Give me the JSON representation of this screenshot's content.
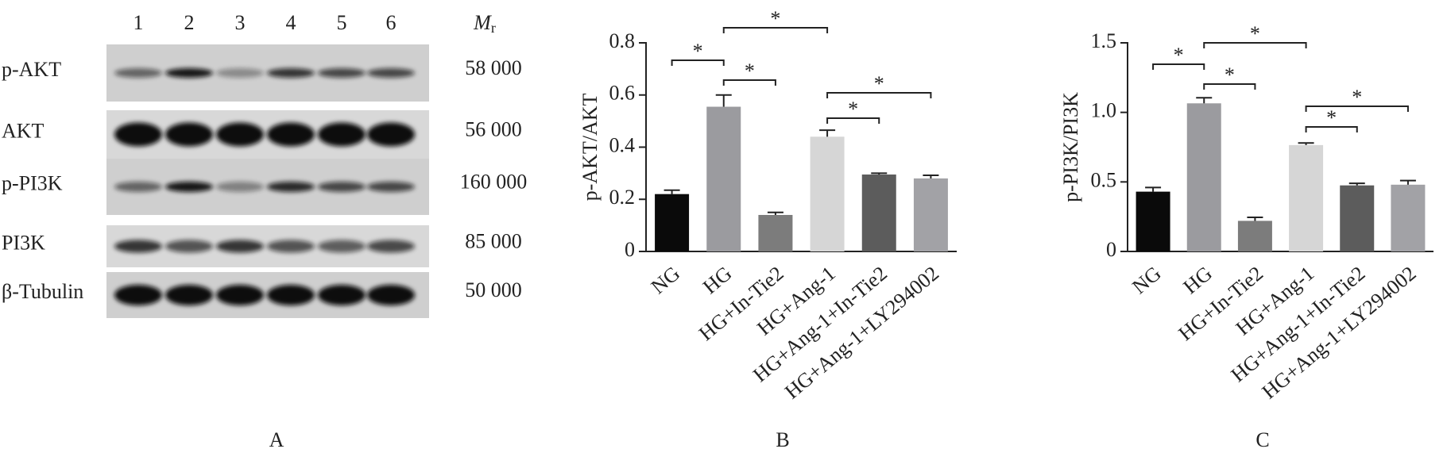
{
  "blot": {
    "lanes": [
      "1",
      "2",
      "3",
      "4",
      "5",
      "6"
    ],
    "mr_symbol": "M",
    "mr_subscript": "r",
    "rows": [
      {
        "label": "p-AKT",
        "mr": "58 000"
      },
      {
        "label": "AKT",
        "mr": "56 000"
      },
      {
        "label": "p-PI3K",
        "mr": "160 000"
      },
      {
        "label": "PI3K",
        "mr": "85 000"
      },
      {
        "label": "β-Tubulin",
        "mr": "50 000"
      }
    ],
    "panel_label": "A"
  },
  "chart_data": [
    {
      "type": "bar",
      "panel_label": "B",
      "ylabel": "p-AKT/AKT",
      "categories": [
        "NG",
        "HG",
        "HG+In-Tie2",
        "HG+Ang-1",
        "HG+Ang-1+In-Tie2",
        "HG+Ang-1+LY294002"
      ],
      "values": [
        0.22,
        0.555,
        0.14,
        0.44,
        0.295,
        0.28
      ],
      "errors": [
        0.015,
        0.045,
        0.01,
        0.025,
        0.005,
        0.012
      ],
      "colors": [
        "#0a0a0a",
        "#9b9b9f",
        "#7c7c7c",
        "#d6d6d6",
        "#5c5c5c",
        "#a2a2a6"
      ],
      "ylim": [
        0,
        0.8
      ],
      "yticks": [
        0,
        0.2,
        0.4,
        0.6,
        0.8
      ],
      "annotations": [
        {
          "text": "*",
          "between": [
            "NG",
            "HG"
          ]
        },
        {
          "text": "*",
          "between": [
            "HG",
            "HG+Ang-1"
          ]
        },
        {
          "text": "*",
          "between": [
            "HG",
            "HG+In-Tie2"
          ]
        },
        {
          "text": "*",
          "between": [
            "HG+Ang-1",
            "HG+Ang-1+In-Tie2"
          ]
        },
        {
          "text": "*",
          "between": [
            "HG+Ang-1",
            "HG+Ang-1+LY294002"
          ]
        }
      ]
    },
    {
      "type": "bar",
      "panel_label": "C",
      "ylabel": "p-PI3K/PI3K",
      "categories": [
        "NG",
        "HG",
        "HG+In-Tie2",
        "HG+Ang-1",
        "HG+Ang-1+In-Tie2",
        "HG+Ang-1+LY294002"
      ],
      "values": [
        0.43,
        1.065,
        0.22,
        0.765,
        0.475,
        0.48
      ],
      "errors": [
        0.03,
        0.04,
        0.025,
        0.015,
        0.015,
        0.03
      ],
      "colors": [
        "#0a0a0a",
        "#9b9b9f",
        "#7c7c7c",
        "#d6d6d6",
        "#5c5c5c",
        "#a2a2a6"
      ],
      "ylim": [
        0,
        1.5
      ],
      "yticks": [
        0,
        0.5,
        {
          "value": 1,
          "label": "1.0"
        },
        1.5
      ],
      "annotations": [
        {
          "text": "*",
          "between": [
            "NG",
            "HG"
          ]
        },
        {
          "text": "*",
          "between": [
            "HG",
            "HG+Ang-1"
          ]
        },
        {
          "text": "*",
          "between": [
            "HG",
            "HG+In-Tie2"
          ]
        },
        {
          "text": "*",
          "between": [
            "HG+Ang-1",
            "HG+Ang-1+In-Tie2"
          ]
        },
        {
          "text": "*",
          "between": [
            "HG+Ang-1",
            "HG+Ang-1+LY294002"
          ]
        }
      ]
    }
  ]
}
